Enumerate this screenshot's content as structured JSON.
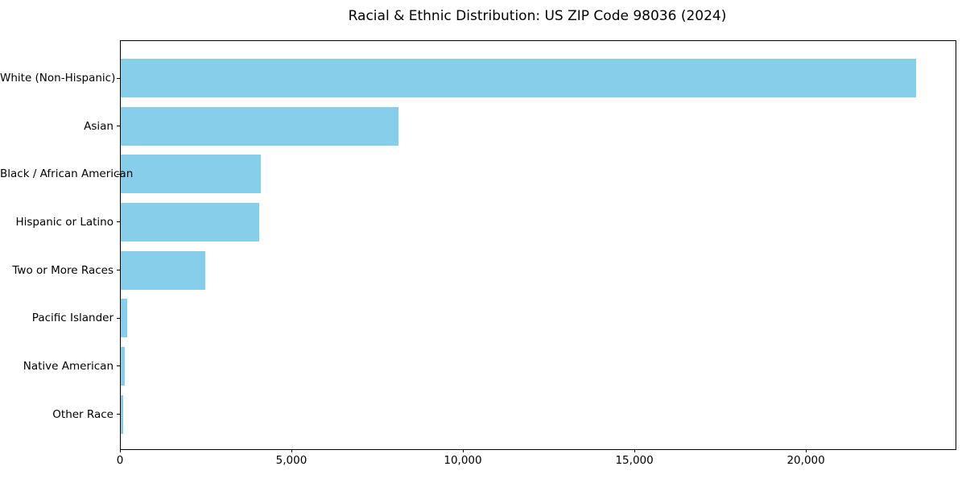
{
  "chart_data": {
    "type": "bar",
    "orientation": "horizontal",
    "title": "Racial & Ethnic Distribution: US ZIP Code 98036 (2024)",
    "categories": [
      "White (Non-Hispanic)",
      "Asian",
      "Black / African American",
      "Hispanic or Latino",
      "Two or More Races",
      "Pacific Islander",
      "Native American",
      "Other Race"
    ],
    "values": [
      23200,
      8100,
      4080,
      4030,
      2470,
      190,
      110,
      70
    ],
    "xlim": [
      0,
      24340
    ],
    "x_ticks": [
      0,
      5000,
      10000,
      15000,
      20000
    ],
    "x_tick_labels": [
      "0",
      "5,000",
      "10,000",
      "15,000",
      "20,000"
    ],
    "xlabel": "",
    "ylabel": "",
    "grid": false,
    "legend": "none",
    "colors": {
      "bar": "#87CEEB",
      "spine": "#000000",
      "text": "#000000",
      "background": "#ffffff"
    }
  }
}
